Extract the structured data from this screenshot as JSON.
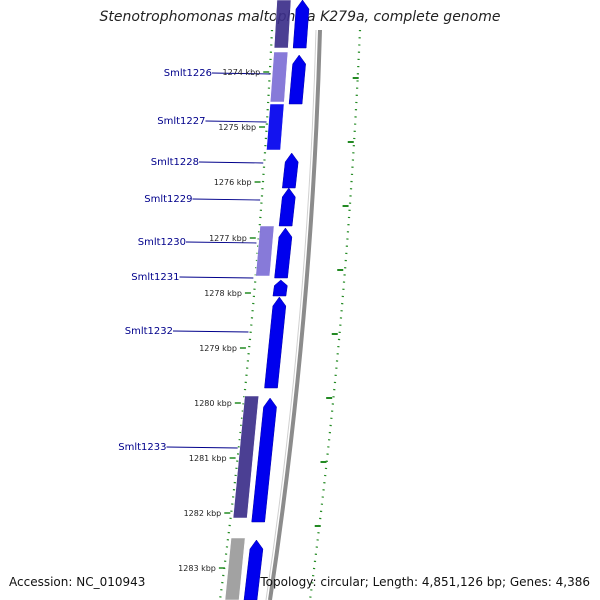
{
  "title": "Stenotrophomonas maltophilia K279a, complete genome",
  "footer": {
    "accession": "Accession: NC_010943",
    "topology": "Topology: circular; Length: 4,851,126 bp; Genes: 4,386"
  },
  "colors": {
    "forward_gene": "#0000ee",
    "reverse_gene_a": "#7d6fd6",
    "reverse_gene_b": "#3c2f8a",
    "reverse_gene_c": "#9b9b9b",
    "backbone": "#8c8c8c",
    "gc_dots": "#238a23",
    "label": "#00008b"
  },
  "genes": [
    {
      "name": "Smlt1226"
    },
    {
      "name": "Smlt1227"
    },
    {
      "name": "Smlt1228"
    },
    {
      "name": "Smlt1229"
    },
    {
      "name": "Smlt1230"
    },
    {
      "name": "Smlt1231"
    },
    {
      "name": "Smlt1232"
    },
    {
      "name": "Smlt1233"
    }
  ],
  "ticks": [
    "1274 kbp",
    "1275 kbp",
    "1276 kbp",
    "1277 kbp",
    "1278 kbp",
    "1279 kbp",
    "1280 kbp",
    "1281 kbp",
    "1282 kbp",
    "1283 kbp"
  ]
}
